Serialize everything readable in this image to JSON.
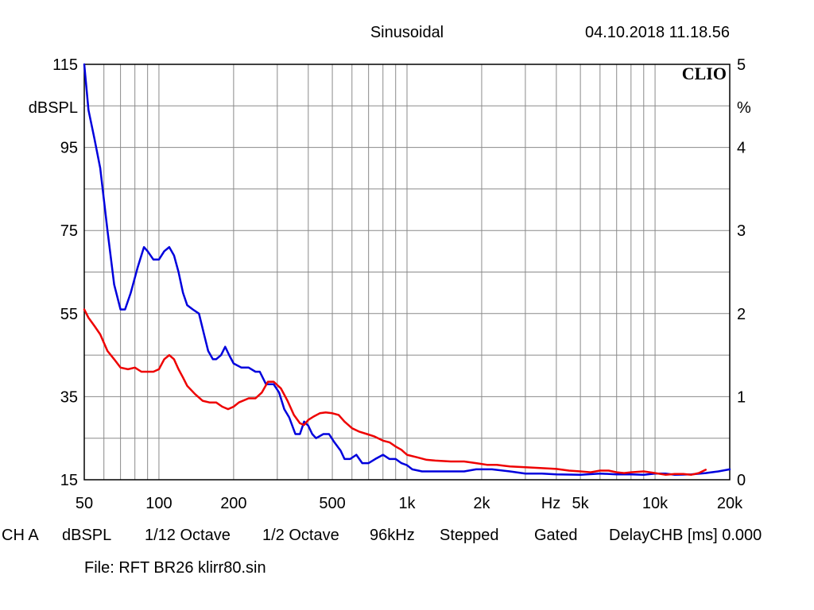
{
  "header": {
    "mode": "Sinusoidal",
    "datetime": "04.10.2018 11.18.56",
    "logo": "CLIO"
  },
  "footer": {
    "ch": "CH A",
    "unit": "dBSPL",
    "smoothing": "1/12 Octave",
    "step": "1/2 Octave",
    "rate": "96kHz",
    "stepped": "Stepped",
    "gated": "Gated",
    "delay": "DelayCHB [ms] 0.000",
    "file": "File: RFT BR26 klirr80.sin"
  },
  "chart_data": {
    "type": "line",
    "x_scale": "log",
    "xlim": [
      50,
      20000
    ],
    "x_ticks": [
      {
        "v": 50,
        "label": "50"
      },
      {
        "v": 100,
        "label": "100"
      },
      {
        "v": 200,
        "label": "200"
      },
      {
        "v": 500,
        "label": "500"
      },
      {
        "v": 1000,
        "label": "1k"
      },
      {
        "v": 2000,
        "label": "2k"
      },
      {
        "v": 5000,
        "label": "5k"
      },
      {
        "v": 10000,
        "label": "10k"
      },
      {
        "v": 20000,
        "label": "20k"
      }
    ],
    "x_unit_label": "Hz",
    "ylim_left": [
      15,
      115
    ],
    "y_left_ticks": [
      "115",
      "95",
      "75",
      "55",
      "35",
      "15"
    ],
    "y_left_label": "dBSPL",
    "ylim_right": [
      0,
      5
    ],
    "y_right_ticks": [
      "5",
      "4",
      "3",
      "2",
      "1",
      "0"
    ],
    "y_right_label": "%",
    "grid": true,
    "series": [
      {
        "color": "#0000dd",
        "axis": "left",
        "points": [
          [
            50,
            115
          ],
          [
            52,
            104
          ],
          [
            55,
            97
          ],
          [
            58,
            90
          ],
          [
            62,
            75
          ],
          [
            66,
            62
          ],
          [
            70,
            56
          ],
          [
            73,
            56
          ],
          [
            77,
            60
          ],
          [
            82,
            66
          ],
          [
            87,
            71
          ],
          [
            90,
            70
          ],
          [
            95,
            68
          ],
          [
            100,
            68
          ],
          [
            105,
            70
          ],
          [
            110,
            71
          ],
          [
            115,
            69
          ],
          [
            120,
            65
          ],
          [
            125,
            60
          ],
          [
            130,
            57
          ],
          [
            137,
            56
          ],
          [
            145,
            55
          ],
          [
            152,
            50
          ],
          [
            158,
            46
          ],
          [
            165,
            44
          ],
          [
            170,
            44
          ],
          [
            178,
            45
          ],
          [
            185,
            47
          ],
          [
            192,
            45
          ],
          [
            200,
            43
          ],
          [
            215,
            42
          ],
          [
            230,
            42
          ],
          [
            245,
            41
          ],
          [
            255,
            41
          ],
          [
            270,
            38
          ],
          [
            290,
            38
          ],
          [
            305,
            36
          ],
          [
            320,
            32
          ],
          [
            335,
            30
          ],
          [
            355,
            26
          ],
          [
            370,
            26
          ],
          [
            385,
            29
          ],
          [
            400,
            28
          ],
          [
            415,
            26
          ],
          [
            430,
            25
          ],
          [
            460,
            26
          ],
          [
            485,
            26
          ],
          [
            510,
            24
          ],
          [
            540,
            22
          ],
          [
            560,
            20
          ],
          [
            590,
            20
          ],
          [
            625,
            21
          ],
          [
            660,
            19
          ],
          [
            700,
            19
          ],
          [
            745,
            20
          ],
          [
            800,
            21
          ],
          [
            850,
            20
          ],
          [
            900,
            20
          ],
          [
            950,
            19
          ],
          [
            1000,
            18.5
          ],
          [
            1050,
            17.5
          ],
          [
            1150,
            17
          ],
          [
            1300,
            17
          ],
          [
            1500,
            17
          ],
          [
            1700,
            17
          ],
          [
            1900,
            17.5
          ],
          [
            2200,
            17.5
          ],
          [
            2600,
            17
          ],
          [
            3000,
            16.5
          ],
          [
            3500,
            16.5
          ],
          [
            4000,
            16.3
          ],
          [
            5000,
            16.2
          ],
          [
            6000,
            16.5
          ],
          [
            7000,
            16.3
          ],
          [
            8000,
            16.3
          ],
          [
            9000,
            16.2
          ],
          [
            10000,
            16.5
          ],
          [
            11000,
            16.5
          ],
          [
            12000,
            16.2
          ],
          [
            14000,
            16.3
          ],
          [
            16000,
            16.6
          ],
          [
            18000,
            17
          ],
          [
            20000,
            17.5
          ]
        ]
      },
      {
        "color": "#ee0000",
        "axis": "right",
        "points": [
          [
            50,
            2.05
          ],
          [
            52,
            1.95
          ],
          [
            55,
            1.85
          ],
          [
            58,
            1.75
          ],
          [
            62,
            1.55
          ],
          [
            66,
            1.45
          ],
          [
            70,
            1.35
          ],
          [
            75,
            1.33
          ],
          [
            80,
            1.35
          ],
          [
            85,
            1.3
          ],
          [
            90,
            1.3
          ],
          [
            95,
            1.3
          ],
          [
            100,
            1.33
          ],
          [
            105,
            1.45
          ],
          [
            110,
            1.5
          ],
          [
            115,
            1.45
          ],
          [
            120,
            1.33
          ],
          [
            125,
            1.23
          ],
          [
            130,
            1.13
          ],
          [
            140,
            1.03
          ],
          [
            150,
            0.95
          ],
          [
            160,
            0.93
          ],
          [
            170,
            0.93
          ],
          [
            180,
            0.88
          ],
          [
            190,
            0.85
          ],
          [
            200,
            0.88
          ],
          [
            210,
            0.93
          ],
          [
            230,
            0.98
          ],
          [
            245,
            0.98
          ],
          [
            260,
            1.05
          ],
          [
            275,
            1.18
          ],
          [
            290,
            1.18
          ],
          [
            310,
            1.1
          ],
          [
            330,
            0.95
          ],
          [
            350,
            0.78
          ],
          [
            370,
            0.68
          ],
          [
            385,
            0.66
          ],
          [
            400,
            0.72
          ],
          [
            420,
            0.76
          ],
          [
            445,
            0.8
          ],
          [
            470,
            0.81
          ],
          [
            500,
            0.8
          ],
          [
            530,
            0.78
          ],
          [
            560,
            0.7
          ],
          [
            600,
            0.62
          ],
          [
            640,
            0.58
          ],
          [
            690,
            0.55
          ],
          [
            740,
            0.52
          ],
          [
            800,
            0.47
          ],
          [
            850,
            0.45
          ],
          [
            900,
            0.4
          ],
          [
            950,
            0.36
          ],
          [
            1000,
            0.3
          ],
          [
            1100,
            0.27
          ],
          [
            1200,
            0.24
          ],
          [
            1300,
            0.23
          ],
          [
            1500,
            0.22
          ],
          [
            1700,
            0.22
          ],
          [
            1900,
            0.2
          ],
          [
            2100,
            0.18
          ],
          [
            2300,
            0.18
          ],
          [
            2600,
            0.16
          ],
          [
            3000,
            0.15
          ],
          [
            3500,
            0.14
          ],
          [
            4000,
            0.13
          ],
          [
            4500,
            0.11
          ],
          [
            5000,
            0.1
          ],
          [
            5500,
            0.09
          ],
          [
            6000,
            0.11
          ],
          [
            6500,
            0.11
          ],
          [
            7000,
            0.09
          ],
          [
            7500,
            0.08
          ],
          [
            8000,
            0.09
          ],
          [
            9000,
            0.1
          ],
          [
            10000,
            0.08
          ],
          [
            11000,
            0.06
          ],
          [
            12000,
            0.07
          ],
          [
            13000,
            0.07
          ],
          [
            14000,
            0.06
          ],
          [
            15000,
            0.08
          ],
          [
            16000,
            0.12
          ]
        ]
      }
    ]
  }
}
